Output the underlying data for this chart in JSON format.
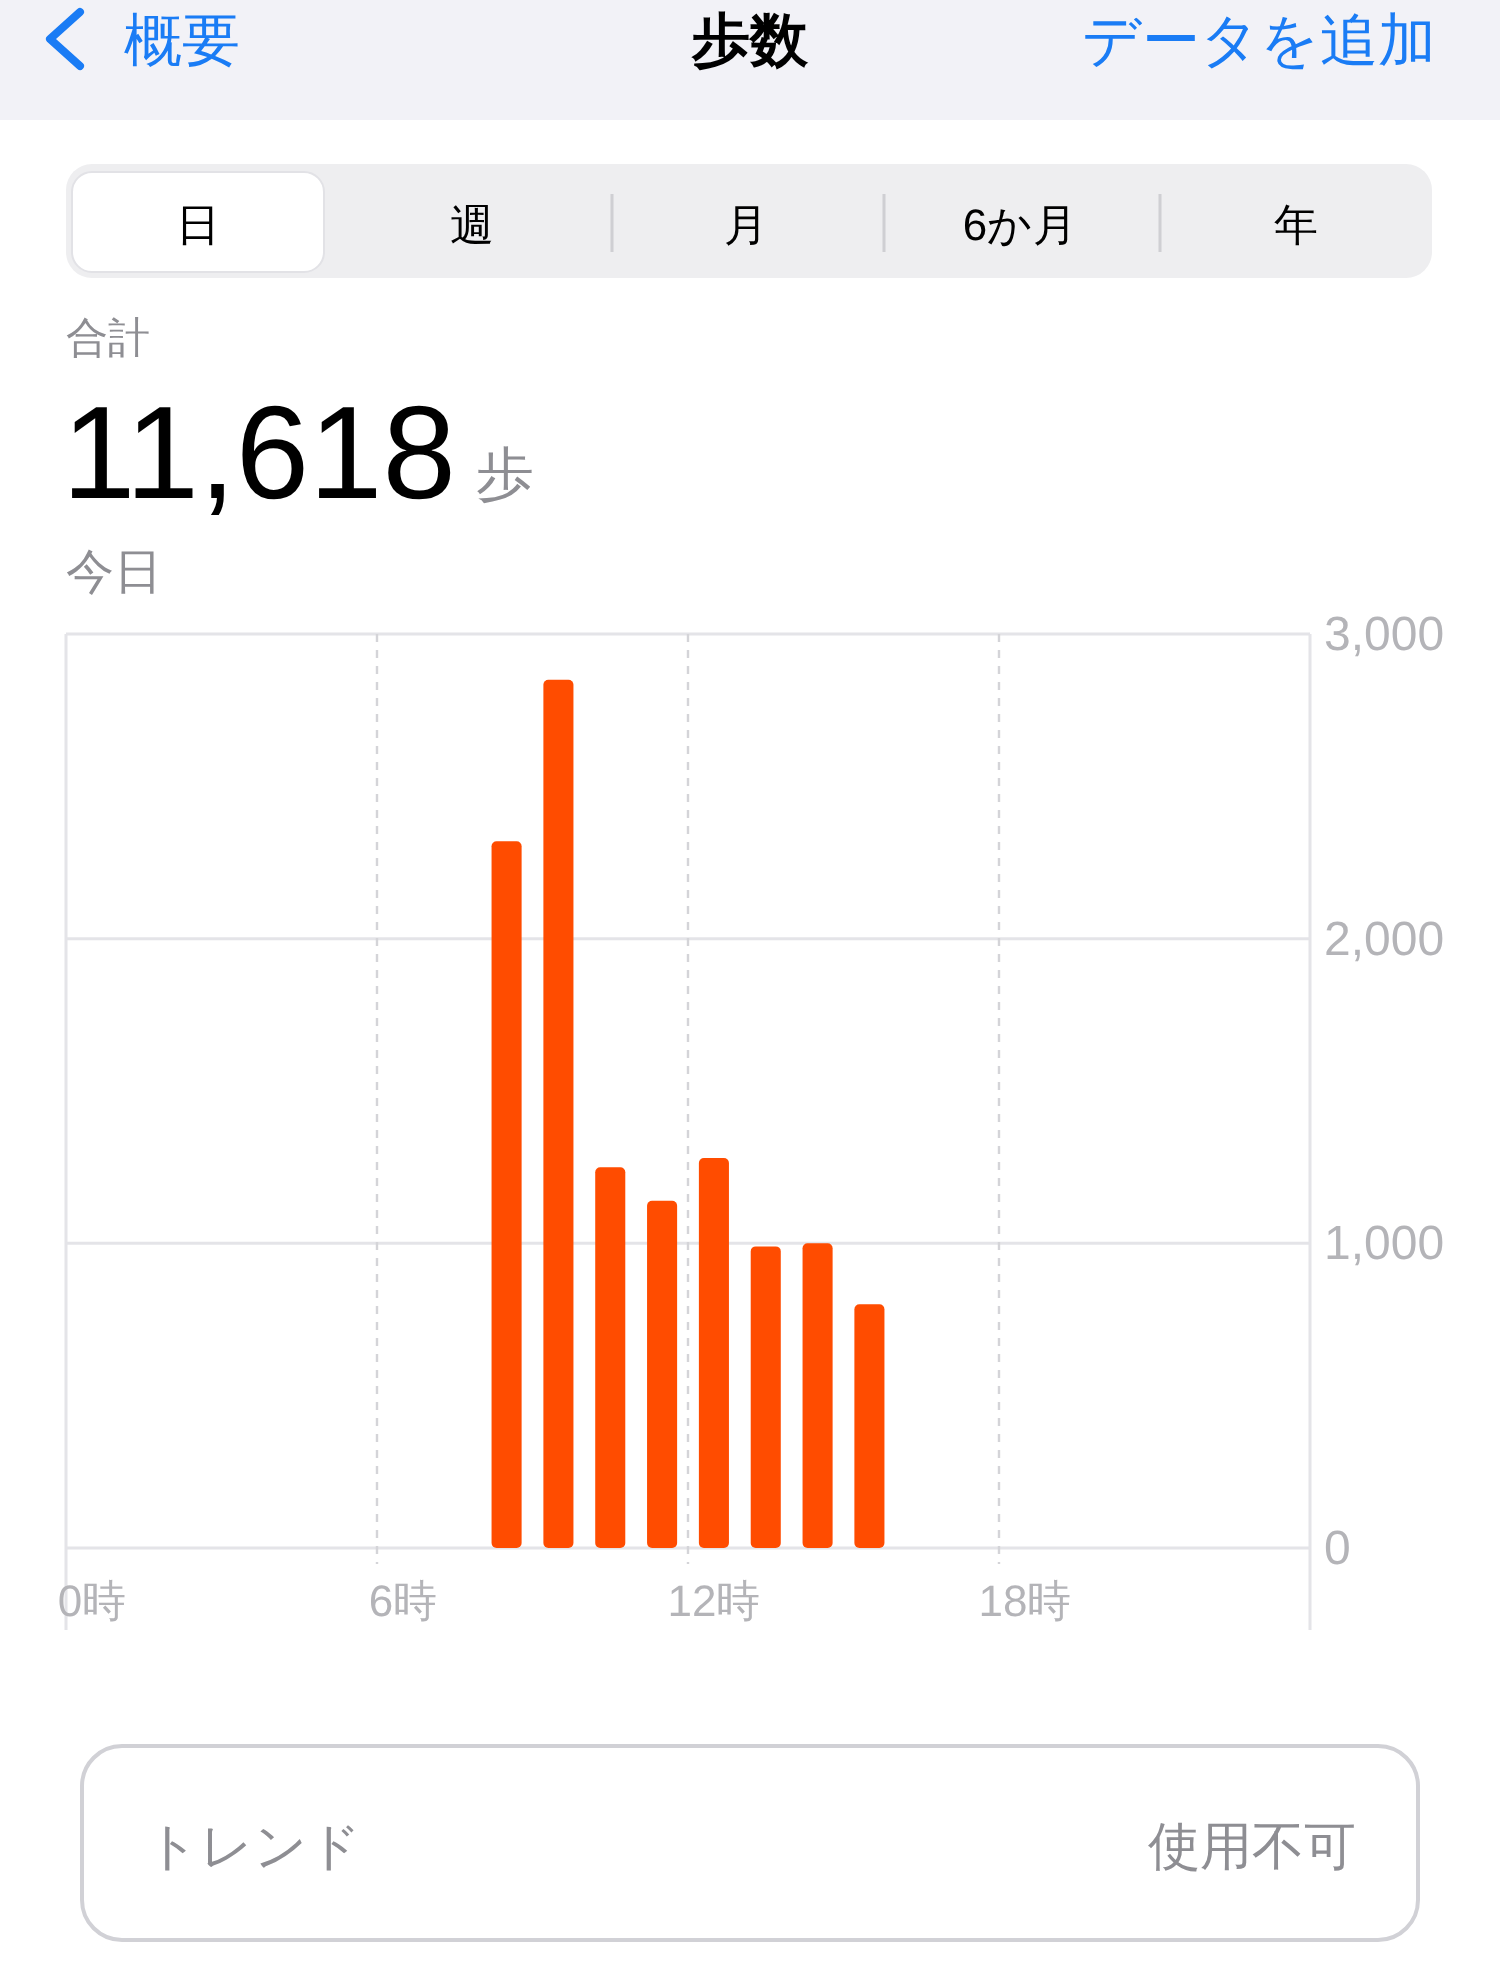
{
  "chart_data": {
    "type": "bar",
    "title": "歩数",
    "subtitle": "今日",
    "categories": [
      "0時",
      null,
      null,
      null,
      null,
      null,
      "6時",
      null,
      null,
      null,
      null,
      null,
      "12時",
      null,
      null,
      null,
      null,
      null,
      "18時",
      null,
      null,
      null,
      null,
      null
    ],
    "values": [
      null,
      null,
      null,
      null,
      null,
      null,
      null,
      null,
      2320,
      2850,
      1250,
      1140,
      1280,
      990,
      1000,
      800,
      null,
      null,
      null,
      null,
      null,
      null,
      null,
      null
    ],
    "color": "#ff4c00",
    "ylim": [
      0,
      3000
    ],
    "yticks": [
      0,
      {
        "value": 1000,
        "label": "1,000"
      },
      {
        "value": 2000,
        "label": "2,000"
      },
      {
        "value": 3000,
        "label": "3,000"
      }
    ],
    "grid": true,
    "annotations": [
      "概要",
      "データを追加",
      "日",
      "週",
      "月",
      "6か月",
      "年",
      "合計",
      "11,618",
      "歩",
      "トレンド",
      "使用不可"
    ]
  }
}
